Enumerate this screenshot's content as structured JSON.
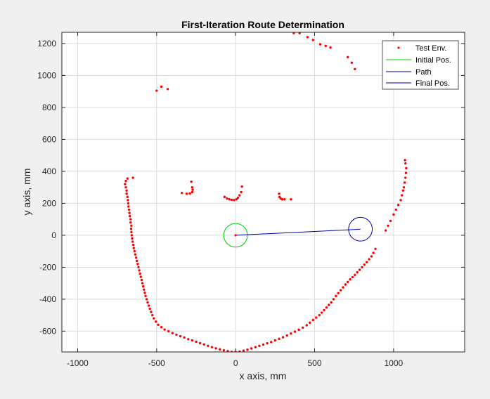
{
  "chart_data": {
    "type": "scatter",
    "title": "First-Iteration Route Determination",
    "xlabel": "x axis, mm",
    "ylabel": "y axis, mm",
    "xlim": [
      -1100,
      1450
    ],
    "ylim": [
      -730,
      1270
    ],
    "xticks": [
      -1000,
      -500,
      0,
      500,
      1000
    ],
    "yticks": [
      -600,
      -400,
      -200,
      0,
      200,
      400,
      600,
      800,
      1000,
      1200
    ],
    "grid": true,
    "legend_position": "top-right",
    "legend": [
      "Test Env.",
      "Initial Pos.",
      "Path",
      "Final Pos."
    ],
    "colors": {
      "env": "#ff0000",
      "initial": "#00cc00",
      "path": "#0000aa",
      "final": "#0000aa"
    },
    "series": [
      {
        "name": "Test Env.",
        "points": [
          [
            -695,
            340
          ],
          [
            -700,
            320
          ],
          [
            -695,
            300
          ],
          [
            -690,
            280
          ],
          [
            -690,
            260
          ],
          [
            -685,
            240
          ],
          [
            -682,
            220
          ],
          [
            -680,
            200
          ],
          [
            -678,
            180
          ],
          [
            -675,
            160
          ],
          [
            -672,
            140
          ],
          [
            -670,
            120
          ],
          [
            -665,
            100
          ],
          [
            -665,
            80
          ],
          [
            -660,
            60
          ],
          [
            -662,
            40
          ],
          [
            -660,
            20
          ],
          [
            -658,
            0
          ],
          [
            -655,
            -20
          ],
          [
            -652,
            -40
          ],
          [
            -648,
            -60
          ],
          [
            -645,
            -80
          ],
          [
            -640,
            -100
          ],
          [
            -635,
            -120
          ],
          [
            -630,
            -140
          ],
          [
            -625,
            -160
          ],
          [
            -620,
            -180
          ],
          [
            -615,
            -200
          ],
          [
            -610,
            -220
          ],
          [
            -605,
            -240
          ],
          [
            -600,
            -260
          ],
          [
            -595,
            -280
          ],
          [
            -590,
            -300
          ],
          [
            -585,
            -320
          ],
          [
            -580,
            -340
          ],
          [
            -575,
            -360
          ],
          [
            -570,
            -380
          ],
          [
            -563,
            -400
          ],
          [
            -557,
            -420
          ],
          [
            -550,
            -440
          ],
          [
            -543,
            -460
          ],
          [
            -535,
            -480
          ],
          [
            -527,
            -500
          ],
          [
            -518,
            -520
          ],
          [
            -505,
            -540
          ],
          [
            -490,
            -560
          ],
          [
            -470,
            -575
          ],
          [
            -450,
            -590
          ],
          [
            -425,
            -600
          ],
          [
            -400,
            -612
          ],
          [
            -375,
            -622
          ],
          [
            -350,
            -632
          ],
          [
            -325,
            -640
          ],
          [
            -300,
            -650
          ],
          [
            -275,
            -658
          ],
          [
            -250,
            -666
          ],
          [
            -225,
            -675
          ],
          [
            -200,
            -683
          ],
          [
            -175,
            -692
          ],
          [
            -150,
            -700
          ],
          [
            -125,
            -707
          ],
          [
            -100,
            -714
          ],
          [
            -75,
            -720
          ],
          [
            -50,
            -725
          ],
          [
            -25,
            -730
          ],
          [
            0,
            -730
          ],
          [
            25,
            -728
          ],
          [
            50,
            -722
          ],
          [
            75,
            -716
          ],
          [
            100,
            -708
          ],
          [
            125,
            -700
          ],
          [
            150,
            -692
          ],
          [
            175,
            -684
          ],
          [
            200,
            -676
          ],
          [
            225,
            -668
          ],
          [
            250,
            -658
          ],
          [
            275,
            -648
          ],
          [
            300,
            -638
          ],
          [
            325,
            -627
          ],
          [
            350,
            -615
          ],
          [
            375,
            -603
          ],
          [
            400,
            -591
          ],
          [
            425,
            -578
          ],
          [
            450,
            -563
          ],
          [
            470,
            -547
          ],
          [
            490,
            -530
          ],
          [
            510,
            -515
          ],
          [
            530,
            -500
          ],
          [
            545,
            -484
          ],
          [
            560,
            -468
          ],
          [
            575,
            -452
          ],
          [
            590,
            -436
          ],
          [
            605,
            -420
          ],
          [
            620,
            -400
          ],
          [
            635,
            -380
          ],
          [
            650,
            -362
          ],
          [
            665,
            -344
          ],
          [
            680,
            -326
          ],
          [
            695,
            -308
          ],
          [
            710,
            -292
          ],
          [
            725,
            -276
          ],
          [
            740,
            -262
          ],
          [
            755,
            -248
          ],
          [
            770,
            -232
          ],
          [
            785,
            -216
          ],
          [
            800,
            -200
          ],
          [
            815,
            -184
          ],
          [
            830,
            -168
          ],
          [
            845,
            -150
          ],
          [
            860,
            -132
          ],
          [
            872,
            -110
          ],
          [
            885,
            -85
          ],
          [
            -685,
            355
          ],
          [
            -650,
            360
          ],
          [
            -340,
            265
          ],
          [
            -310,
            260
          ],
          [
            -290,
            262
          ],
          [
            -275,
            270
          ],
          [
            -272,
            285
          ],
          [
            -275,
            300
          ],
          [
            -280,
            335
          ],
          [
            -70,
            240
          ],
          [
            -55,
            230
          ],
          [
            -40,
            225
          ],
          [
            -25,
            222
          ],
          [
            -10,
            220
          ],
          [
            5,
            225
          ],
          [
            15,
            235
          ],
          [
            25,
            250
          ],
          [
            35,
            270
          ],
          [
            40,
            305
          ],
          [
            275,
            260
          ],
          [
            278,
            240
          ],
          [
            285,
            230
          ],
          [
            295,
            225
          ],
          [
            310,
            225
          ],
          [
            350,
            225
          ],
          [
            -500,
            905
          ],
          [
            -470,
            930
          ],
          [
            -430,
            915
          ],
          [
            368,
            1265
          ],
          [
            405,
            1265
          ],
          [
            455,
            1240
          ],
          [
            490,
            1222
          ],
          [
            535,
            1195
          ],
          [
            570,
            1185
          ],
          [
            600,
            1175
          ],
          [
            710,
            1115
          ],
          [
            735,
            1080
          ],
          [
            755,
            1040
          ],
          [
            950,
            30
          ],
          [
            965,
            60
          ],
          [
            980,
            90
          ],
          [
            1000,
            130
          ],
          [
            1015,
            160
          ],
          [
            1030,
            190
          ],
          [
            1045,
            220
          ],
          [
            1052,
            250
          ],
          [
            1060,
            280
          ],
          [
            1065,
            300
          ],
          [
            1070,
            330
          ],
          [
            1075,
            360
          ],
          [
            1078,
            390
          ],
          [
            1080,
            420
          ],
          [
            1075,
            450
          ],
          [
            1072,
            470
          ]
        ]
      },
      {
        "name": "Initial Pos.",
        "center": [
          0,
          0
        ],
        "radius": 75
      },
      {
        "name": "Path",
        "points": [
          [
            0,
            0
          ],
          [
            790,
            38
          ]
        ]
      },
      {
        "name": "Final Pos.",
        "center": [
          790,
          38
        ],
        "radius": 75
      }
    ]
  }
}
